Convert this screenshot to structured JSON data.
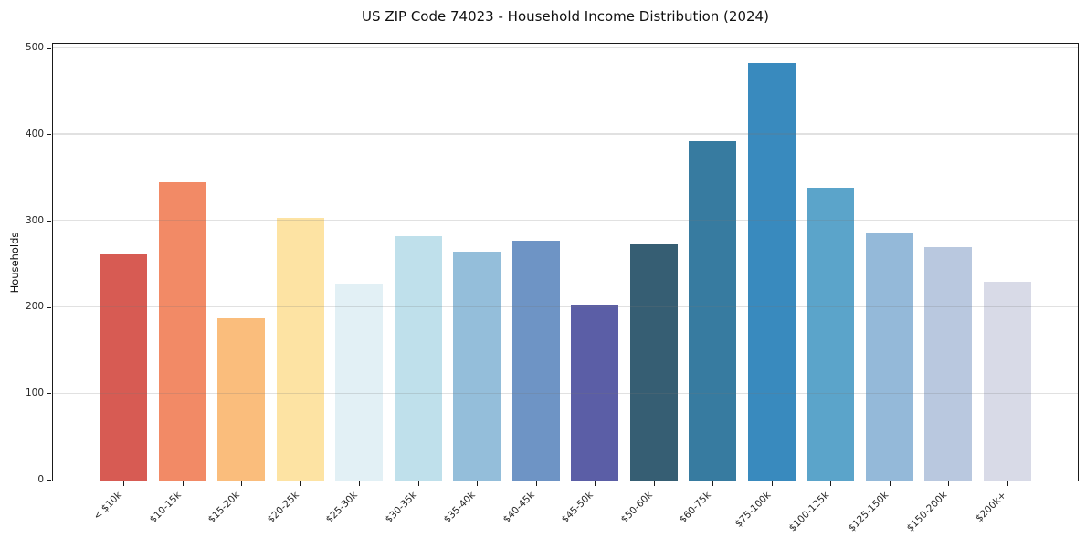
{
  "chart_data": {
    "type": "bar",
    "title": "US ZIP Code 74023 - Household Income Distribution (2024)",
    "xlabel": "",
    "ylabel": "Households",
    "categories": [
      "< $10k",
      "$10-15k",
      "$15-20k",
      "$20-25k",
      "$25-30k",
      "$30-35k",
      "$35-40k",
      "$40-45k",
      "$45-50k",
      "$50-60k",
      "$60-75k",
      "$75-100k",
      "$100-125k",
      "$125-150k",
      "$150-200k",
      "$200k+"
    ],
    "values": [
      261,
      345,
      188,
      304,
      228,
      283,
      265,
      277,
      202,
      273,
      392,
      483,
      338,
      286,
      270,
      230
    ],
    "bar_colors": [
      "#d75b53",
      "#f28a66",
      "#fabd7c",
      "#fde3a3",
      "#e2f0f5",
      "#bfe0eb",
      "#94beda",
      "#6e94c5",
      "#5b5ea6",
      "#365e73",
      "#377ba0",
      "#398abe",
      "#5ba4ca",
      "#94b9d9",
      "#b9c8df",
      "#d8dae7"
    ],
    "yticks": [
      0,
      100,
      200,
      300,
      400,
      500
    ],
    "ylim": [
      0,
      505
    ],
    "grid": "horizontal",
    "legend": "none",
    "background": "#ffffff"
  },
  "colors": {
    "spine": "#1a1a1a",
    "gridline": "#e6e6e6",
    "text": "#262626"
  }
}
